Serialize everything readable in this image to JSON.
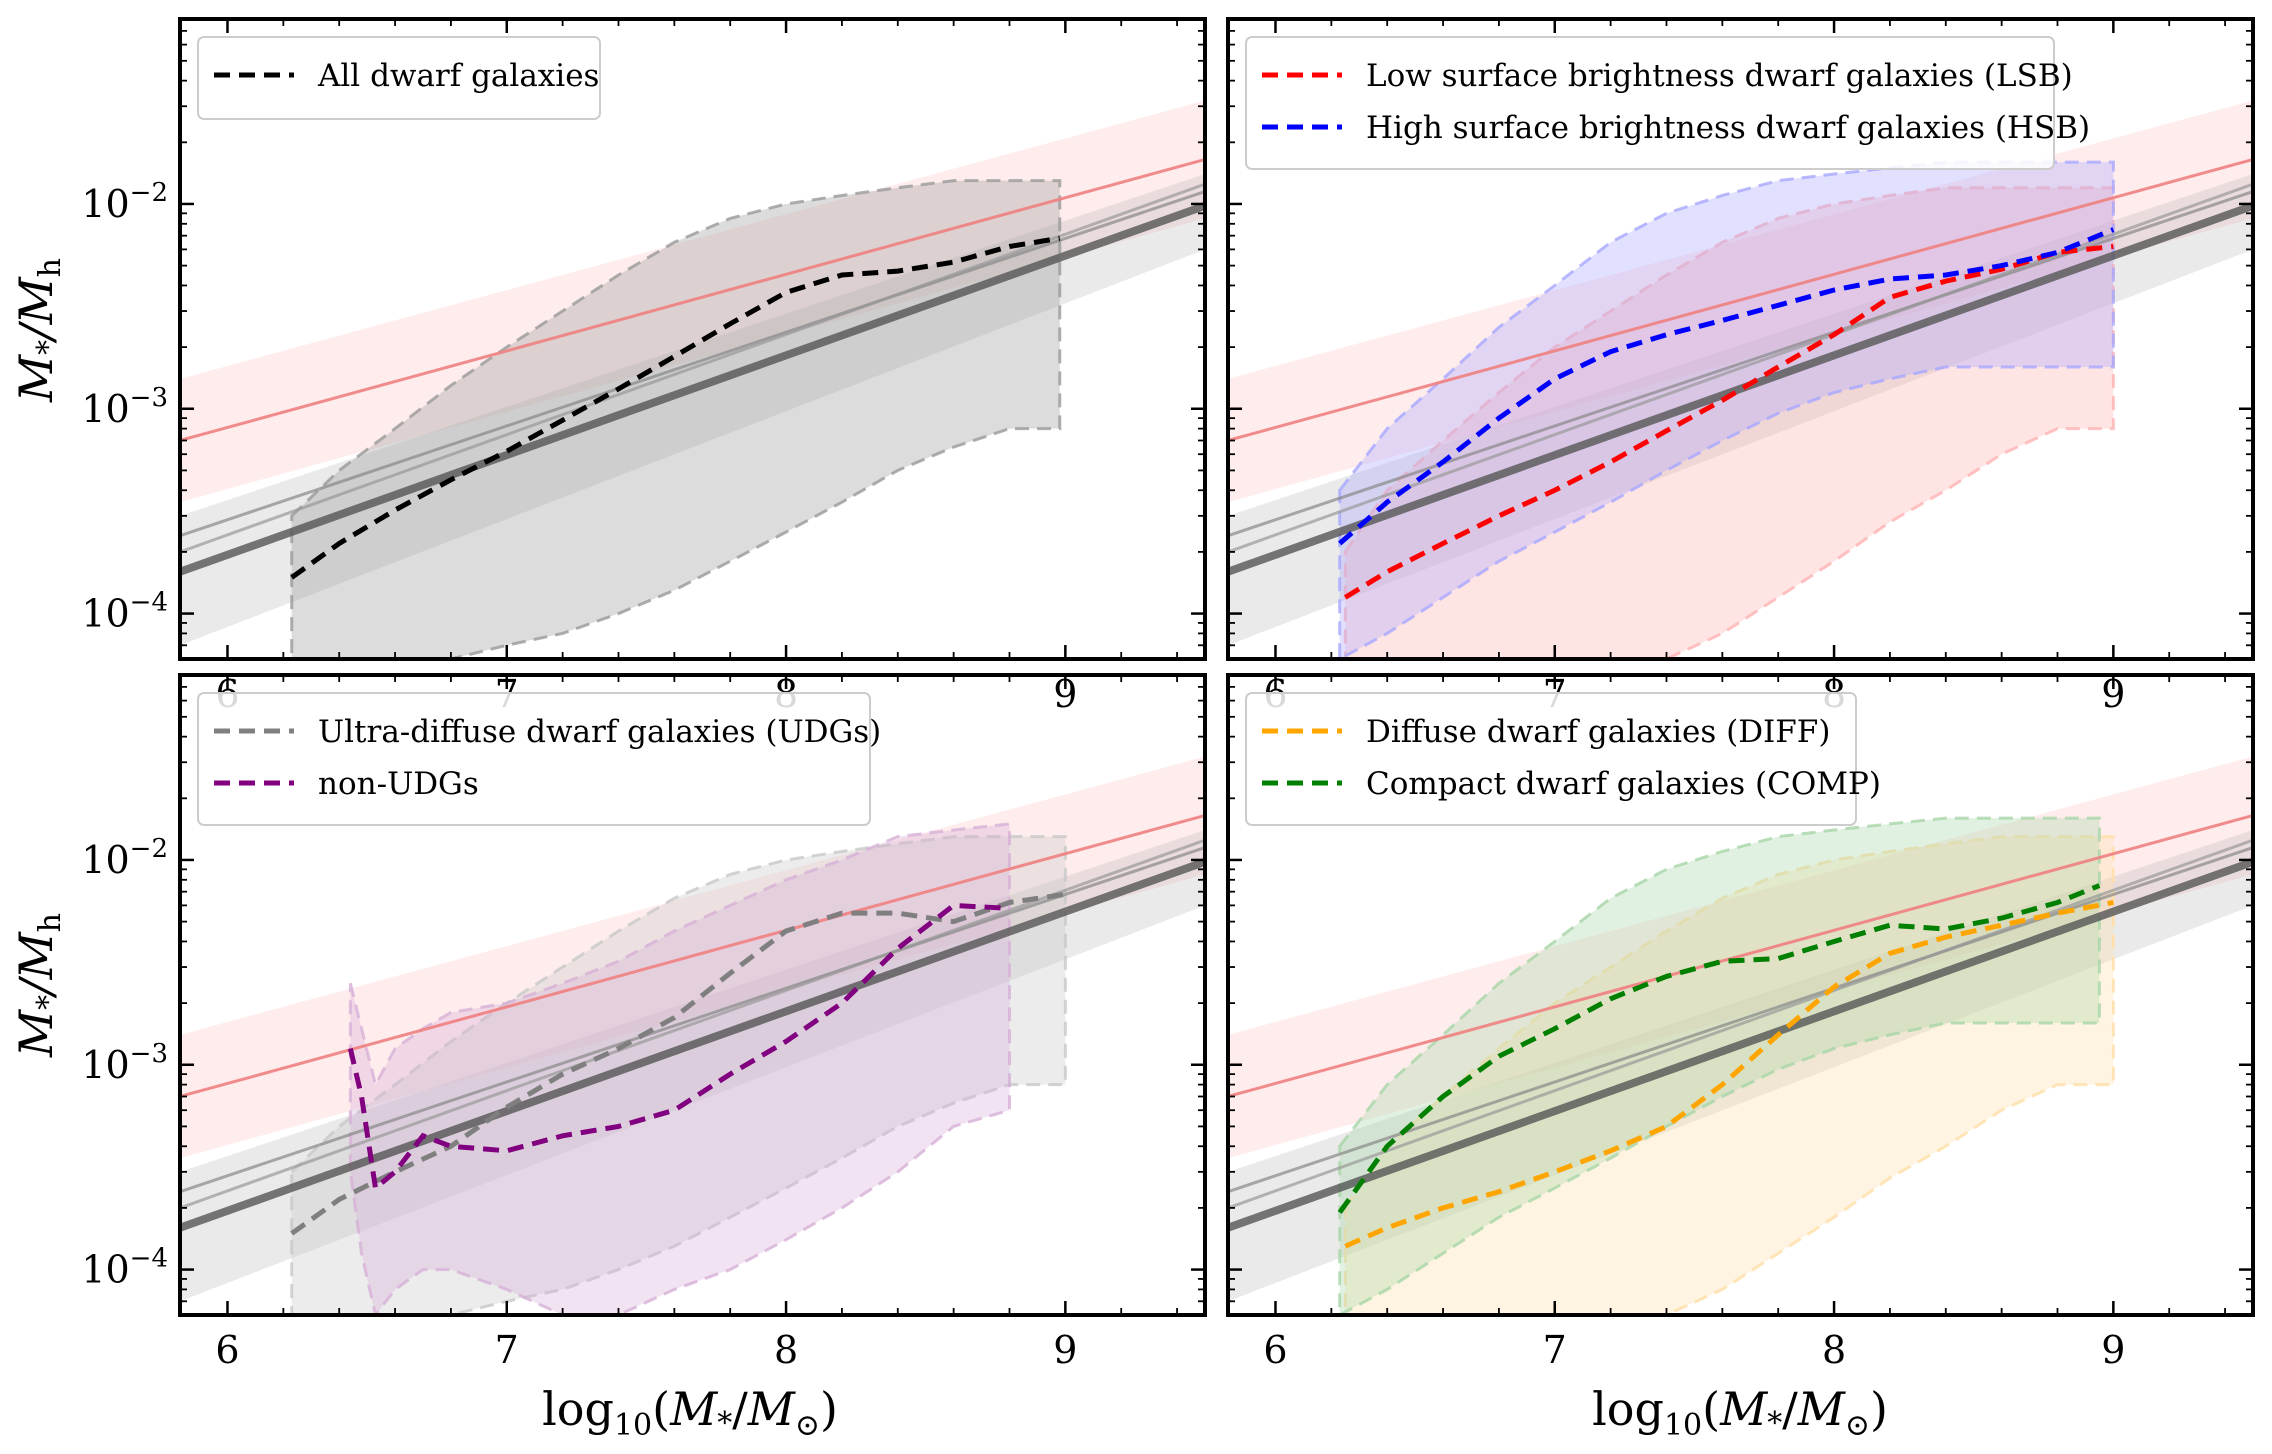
{
  "chart_data": {
    "type": "line",
    "yscale": "log",
    "xlim": [
      5.83,
      9.5
    ],
    "ylim": [
      6e-05,
      0.08
    ],
    "xticks": [
      6,
      7,
      8,
      9
    ],
    "xlabel": "log10(M*/M⊙)",
    "ylabel": "M*/Mh",
    "panels": [
      {
        "legend": [
          "All dwarf galaxies"
        ],
        "series": [
          {
            "name": "All dwarf galaxies",
            "color": "#000000",
            "band_color": "#9a9a9a",
            "x": [
              6.23,
              6.4,
              6.6,
              6.8,
              7.0,
              7.2,
              7.4,
              7.6,
              7.8,
              8.0,
              8.2,
              8.4,
              8.6,
              8.8,
              8.98
            ],
            "y": [
              0.00015,
              0.00022,
              0.00032,
              0.00045,
              0.00062,
              0.00088,
              0.00125,
              0.0018,
              0.0026,
              0.0037,
              0.0045,
              0.0047,
              0.0052,
              0.0062,
              0.0068
            ],
            "band_upper": [
              0.0003,
              0.0005,
              0.0008,
              0.0013,
              0.002,
              0.003,
              0.0045,
              0.0065,
              0.0085,
              0.01,
              0.011,
              0.012,
              0.013,
              0.013,
              0.013
            ],
            "band_lower": [
              6e-05,
              6e-05,
              6e-05,
              6e-05,
              7e-05,
              8e-05,
              0.0001,
              0.00013,
              0.00018,
              0.00025,
              0.00035,
              0.0005,
              0.00065,
              0.0008,
              0.0008
            ]
          }
        ]
      },
      {
        "legend": [
          "Low surface brightness dwarf galaxies (LSB)",
          "High surface brightness dwarf galaxies (HSB)"
        ],
        "series": [
          {
            "name": "Low surface brightness dwarf galaxies (LSB)",
            "color": "#ff0000",
            "band_color": "#ffb3b3",
            "x": [
              6.25,
              6.4,
              6.6,
              6.8,
              7.0,
              7.2,
              7.4,
              7.6,
              7.8,
              8.0,
              8.2,
              8.4,
              8.6,
              8.8,
              9.0
            ],
            "y": [
              0.00012,
              0.00016,
              0.00022,
              0.0003,
              0.0004,
              0.00055,
              0.00078,
              0.0011,
              0.0016,
              0.0023,
              0.0035,
              0.0042,
              0.0048,
              0.0058,
              0.0062
            ],
            "band_upper": [
              0.0002,
              0.0004,
              0.0007,
              0.0012,
              0.002,
              0.003,
              0.0045,
              0.0065,
              0.0085,
              0.01,
              0.011,
              0.012,
              0.012,
              0.012,
              0.012
            ],
            "band_lower": [
              6e-05,
              6e-05,
              6e-05,
              6e-05,
              6e-05,
              6e-05,
              6e-05,
              8e-05,
              0.00012,
              0.00018,
              0.00028,
              0.0004,
              0.0006,
              0.0008,
              0.0008
            ]
          },
          {
            "name": "High surface brightness dwarf galaxies (HSB)",
            "color": "#0000ff",
            "band_color": "#a8a8ff",
            "x": [
              6.23,
              6.4,
              6.6,
              6.8,
              7.0,
              7.2,
              7.4,
              7.6,
              7.8,
              8.0,
              8.2,
              8.4,
              8.6,
              8.8,
              9.0
            ],
            "y": [
              0.00022,
              0.00035,
              0.00055,
              0.0009,
              0.0014,
              0.0019,
              0.0023,
              0.0027,
              0.0032,
              0.0038,
              0.0043,
              0.0045,
              0.005,
              0.0058,
              0.0075
            ],
            "band_upper": [
              0.0004,
              0.0008,
              0.0014,
              0.0025,
              0.004,
              0.0065,
              0.009,
              0.011,
              0.013,
              0.014,
              0.015,
              0.016,
              0.016,
              0.016,
              0.016
            ],
            "band_lower": [
              6e-05,
              8e-05,
              0.00012,
              0.00018,
              0.00025,
              0.00035,
              0.0005,
              0.0007,
              0.00095,
              0.0012,
              0.0014,
              0.0016,
              0.0016,
              0.0016,
              0.0016
            ]
          }
        ]
      },
      {
        "legend": [
          "Ultra-diffuse dwarf galaxies (UDGs)",
          "non-UDGs"
        ],
        "series": [
          {
            "name": "Ultra-diffuse dwarf galaxies (UDGs)",
            "color": "#7f7f7f",
            "band_color": "#c8c8c8",
            "x": [
              6.23,
              6.4,
              6.6,
              6.8,
              7.0,
              7.2,
              7.4,
              7.6,
              7.8,
              8.0,
              8.2,
              8.4,
              8.6,
              8.8,
              9.0
            ],
            "y": [
              0.00015,
              0.00022,
              0.0003,
              0.0004,
              0.00062,
              0.0009,
              0.0012,
              0.0017,
              0.0028,
              0.0045,
              0.0055,
              0.0055,
              0.005,
              0.0062,
              0.0068
            ],
            "band_upper": [
              0.0003,
              0.0005,
              0.0008,
              0.0013,
              0.002,
              0.003,
              0.0045,
              0.0065,
              0.0085,
              0.01,
              0.011,
              0.012,
              0.013,
              0.013,
              0.013
            ],
            "band_lower": [
              6e-05,
              6e-05,
              6e-05,
              6e-05,
              7e-05,
              8e-05,
              0.0001,
              0.00013,
              0.00018,
              0.00025,
              0.00035,
              0.0005,
              0.00065,
              0.0008,
              0.0008
            ]
          },
          {
            "name": "non-UDGs",
            "color": "#800080",
            "band_color": "#d7b0d7",
            "x": [
              6.44,
              6.48,
              6.53,
              6.6,
              6.7,
              6.8,
              7.0,
              7.2,
              7.4,
              7.6,
              7.8,
              8.0,
              8.2,
              8.4,
              8.6,
              8.8
            ],
            "y": [
              0.0012,
              0.0007,
              0.00025,
              0.0003,
              0.00045,
              0.0004,
              0.00038,
              0.00045,
              0.0005,
              0.0006,
              0.0009,
              0.0013,
              0.002,
              0.0037,
              0.006,
              0.0058
            ],
            "band_upper": [
              0.0025,
              0.0015,
              0.0008,
              0.0012,
              0.0015,
              0.0018,
              0.002,
              0.0025,
              0.0032,
              0.0045,
              0.006,
              0.008,
              0.01,
              0.013,
              0.014,
              0.015
            ],
            "band_lower": [
              0.0003,
              0.00012,
              6e-05,
              8e-05,
              0.0001,
              0.0001,
              8e-05,
              6e-05,
              6e-05,
              8e-05,
              0.0001,
              0.00014,
              0.0002,
              0.0003,
              0.0005,
              0.0006
            ]
          }
        ]
      },
      {
        "legend": [
          "Diffuse dwarf galaxies (DIFF)",
          "Compact dwarf galaxies (COMP)"
        ],
        "series": [
          {
            "name": "Diffuse dwarf galaxies (DIFF)",
            "color": "#ffa500",
            "band_color": "#ffdfa8",
            "x": [
              6.25,
              6.4,
              6.6,
              6.8,
              7.0,
              7.2,
              7.4,
              7.6,
              7.8,
              8.0,
              8.2,
              8.4,
              8.6,
              8.8,
              9.0
            ],
            "y": [
              0.00013,
              0.00016,
              0.0002,
              0.00024,
              0.0003,
              0.00038,
              0.0005,
              0.0008,
              0.0014,
              0.0024,
              0.0035,
              0.0042,
              0.0048,
              0.0055,
              0.0062
            ],
            "band_upper": [
              0.0002,
              0.0004,
              0.0007,
              0.0012,
              0.002,
              0.003,
              0.0045,
              0.0065,
              0.0085,
              0.01,
              0.011,
              0.012,
              0.013,
              0.013,
              0.013
            ],
            "band_lower": [
              6e-05,
              6e-05,
              6e-05,
              6e-05,
              6e-05,
              6e-05,
              6e-05,
              8e-05,
              0.00012,
              0.00018,
              0.00028,
              0.0004,
              0.0006,
              0.0008,
              0.0008
            ]
          },
          {
            "name": "Compact dwarf galaxies (COMP)",
            "color": "#007f00",
            "band_color": "#a8d6a8",
            "x": [
              6.23,
              6.4,
              6.6,
              6.8,
              7.0,
              7.2,
              7.4,
              7.6,
              7.8,
              8.0,
              8.2,
              8.4,
              8.6,
              8.8,
              8.95
            ],
            "y": [
              0.00019,
              0.0004,
              0.0007,
              0.0011,
              0.0015,
              0.0021,
              0.0027,
              0.0032,
              0.0033,
              0.004,
              0.0048,
              0.0046,
              0.0052,
              0.0062,
              0.0075
            ],
            "band_upper": [
              0.0004,
              0.0008,
              0.0014,
              0.0025,
              0.004,
              0.0065,
              0.009,
              0.011,
              0.013,
              0.014,
              0.015,
              0.016,
              0.016,
              0.016,
              0.016
            ],
            "band_lower": [
              6e-05,
              8e-05,
              0.00012,
              0.00018,
              0.00025,
              0.00035,
              0.0005,
              0.0007,
              0.00095,
              0.0012,
              0.0014,
              0.0016,
              0.0016,
              0.0016,
              0.0016
            ]
          }
        ]
      }
    ],
    "reference_relations": {
      "gray_main": {
        "color": "#555555",
        "x": [
          5.83,
          9.5
        ],
        "y": [
          0.00016,
          0.0098
        ]
      },
      "gray_alt_1": {
        "color": "#888888",
        "x": [
          5.83,
          9.5
        ],
        "y": [
          0.00024,
          0.0115
        ]
      },
      "gray_alt_2": {
        "color": "#999999",
        "x": [
          5.83,
          9.5
        ],
        "y": [
          0.0002,
          0.0125
        ]
      },
      "red": {
        "color": "#f08080",
        "x": [
          5.83,
          9.5
        ],
        "y": [
          0.0007,
          0.0165
        ]
      },
      "red_band": {
        "upper": [
          0.0014,
          0.032
        ],
        "lower": [
          0.00035,
          0.0085
        ]
      },
      "gray_band": {
        "upper": [
          0.0003,
          0.014
        ],
        "lower": [
          7e-05,
          0.006
        ]
      }
    }
  }
}
